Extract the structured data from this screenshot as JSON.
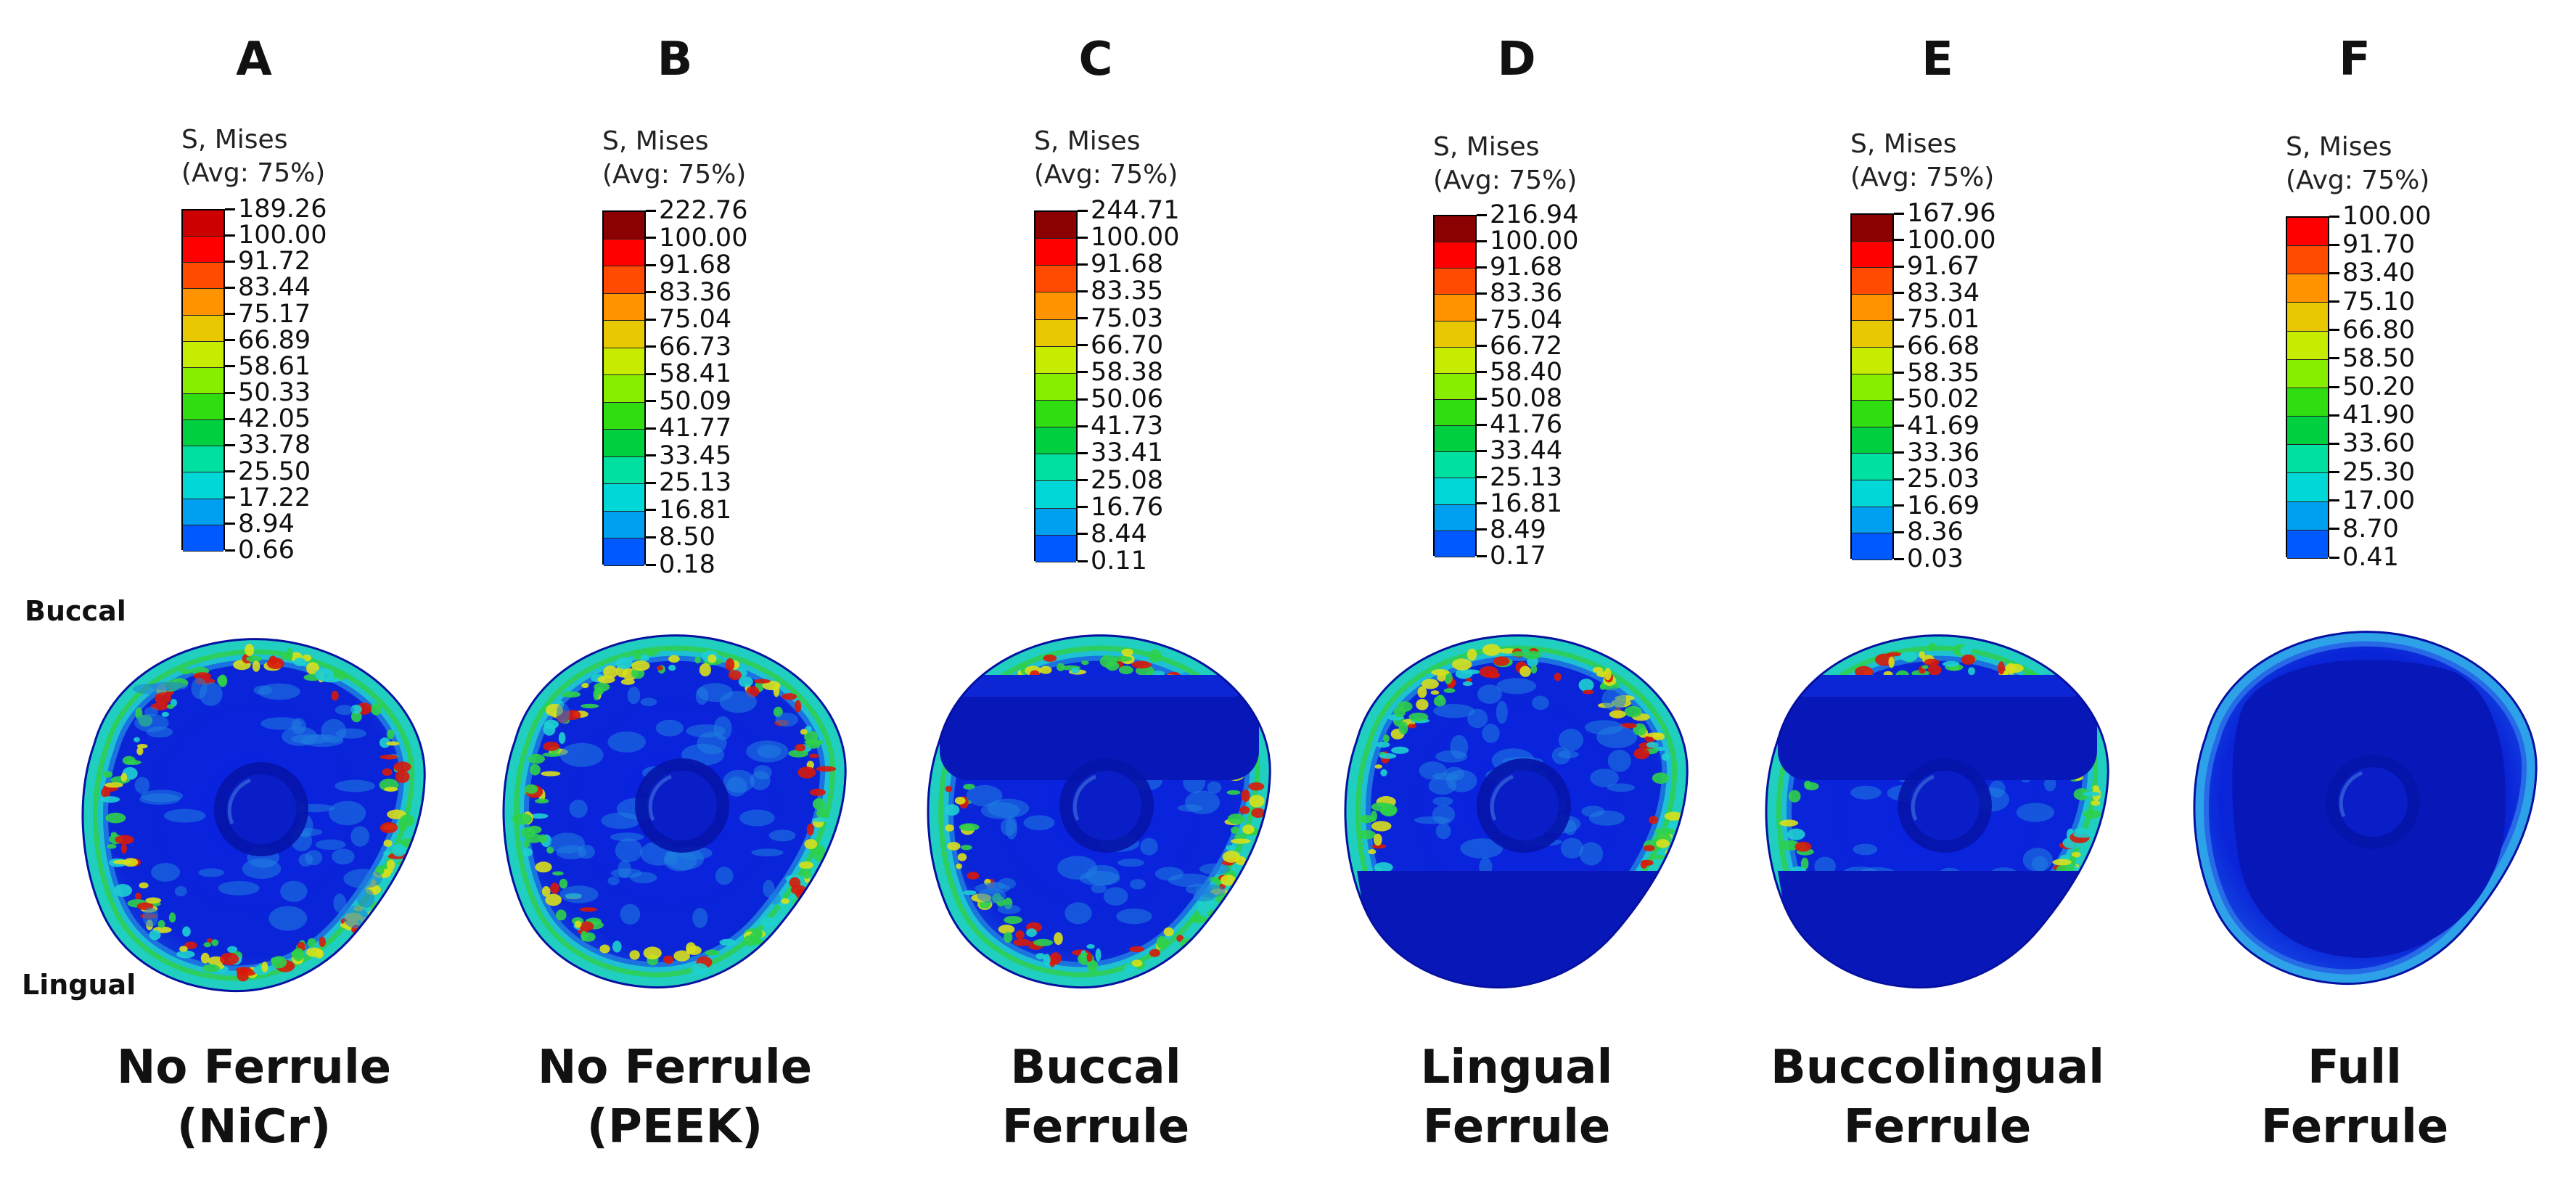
{
  "figure": {
    "side_labels": {
      "buccal": "Buccal",
      "lingual": "Lingual"
    },
    "panels": [
      {
        "letter": "A",
        "legend_title": [
          "S, Mises",
          "(Avg: 75%)"
        ],
        "values": [
          "189.26",
          "100.00",
          "91.72",
          "83.44",
          "75.17",
          "66.89",
          "58.61",
          "50.33",
          "42.05",
          "33.78",
          "25.50",
          "17.22",
          "8.94",
          "0.66"
        ],
        "caption": [
          "No Ferrule",
          "(NiCr)"
        ],
        "variant": "none"
      },
      {
        "letter": "B",
        "legend_title": [
          "S, Mises",
          "(Avg: 75%)"
        ],
        "values": [
          "222.76",
          "100.00",
          "91.68",
          "83.36",
          "75.04",
          "66.73",
          "58.41",
          "50.09",
          "41.77",
          "33.45",
          "25.13",
          "16.81",
          "8.50",
          "0.18"
        ],
        "caption": [
          "No Ferrule",
          "(PEEK)"
        ],
        "variant": "none2"
      },
      {
        "letter": "C",
        "legend_title": [
          "S, Mises",
          "(Avg: 75%)"
        ],
        "values": [
          "244.71",
          "100.00",
          "91.68",
          "83.35",
          "75.03",
          "66.70",
          "58.38",
          "50.06",
          "41.73",
          "33.41",
          "25.08",
          "16.76",
          "8.44",
          "0.11"
        ],
        "caption": [
          "Buccal",
          "Ferrule"
        ],
        "variant": "buccal"
      },
      {
        "letter": "D",
        "legend_title": [
          "S, Mises",
          "(Avg: 75%)"
        ],
        "values": [
          "216.94",
          "100.00",
          "91.68",
          "83.36",
          "75.04",
          "66.72",
          "58.40",
          "50.08",
          "41.76",
          "33.44",
          "25.13",
          "16.81",
          "8.49",
          "0.17"
        ],
        "caption": [
          "Lingual",
          "Ferrule"
        ],
        "variant": "lingual"
      },
      {
        "letter": "E",
        "legend_title": [
          "S, Mises",
          "(Avg: 75%)"
        ],
        "values": [
          "167.96",
          "100.00",
          "91.67",
          "83.34",
          "75.01",
          "66.68",
          "58.35",
          "50.02",
          "41.69",
          "33.36",
          "25.03",
          "16.69",
          "8.36",
          "0.03"
        ],
        "caption": [
          "Buccolingual",
          "Ferrule"
        ],
        "variant": "buccolingual"
      },
      {
        "letter": "F",
        "legend_title": [
          "S, Mises",
          "(Avg: 75%)"
        ],
        "values": [
          "100.00",
          "91.70",
          "83.40",
          "75.10",
          "66.80",
          "58.50",
          "50.20",
          "41.90",
          "33.60",
          "25.30",
          "17.00",
          "8.70",
          "0.41"
        ],
        "caption": [
          "Full",
          "Ferrule"
        ],
        "variant": "full"
      }
    ],
    "colors": {
      "scale13": [
        "#ff0000",
        "#ff4a00",
        "#ff9400",
        "#e8c800",
        "#c8ec00",
        "#88ee00",
        "#30dd10",
        "#00d040",
        "#00e0a0",
        "#00d8d8",
        "#00a0f0",
        "#0058ff",
        "#0000ff"
      ],
      "top_dark": "#8b0000",
      "top_red": "#cc0000",
      "tooth_base": "#0a1fd6",
      "tooth_dark": "#0818b8",
      "band_light": "#1f7fe0",
      "band_cyan": "#1ecfd0",
      "band_green": "#2ed04a",
      "band_yellow": "#d8e01a",
      "band_red": "#d81a0a"
    }
  }
}
